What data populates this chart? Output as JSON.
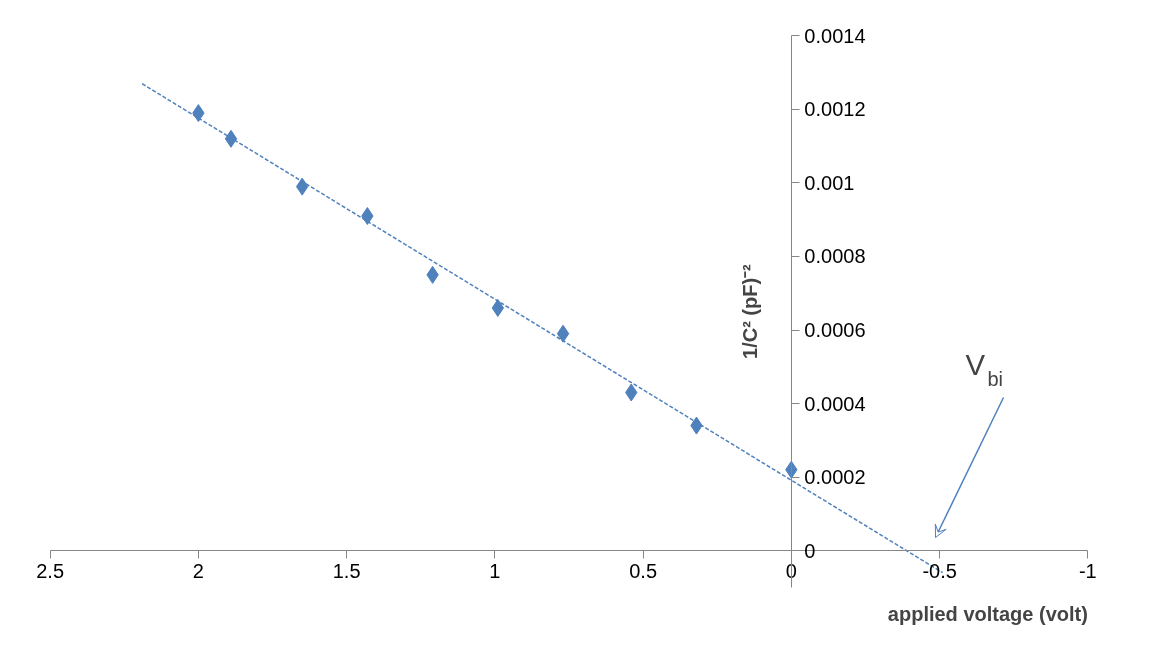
{
  "chart_data": {
    "type": "scatter",
    "xlabel": "applied voltage (volt)",
    "ylabel": "1/C² (pF)⁻²",
    "xlim": [
      2.5,
      -1
    ],
    "xticks": [
      2.5,
      2,
      1.5,
      1,
      0.5,
      0,
      -0.5,
      -1
    ],
    "ylim": [
      -0.0001,
      0.0014
    ],
    "yticks": [
      0,
      0.0002,
      0.0004,
      0.0006,
      0.0008,
      0.001,
      0.0012,
      0.0014
    ],
    "marker": "diamond",
    "series": [
      {
        "color": "#4f81bd",
        "x": [
          2,
          1.89,
          1.65,
          1.43,
          1.21,
          0.99,
          0.77,
          0.54,
          0.32,
          0
        ],
        "values": [
          0.00119,
          0.00112,
          0.00099,
          0.00091,
          0.00075,
          0.00066,
          0.00059,
          0.00043,
          0.00034,
          0.00022
        ]
      },
      {
        "type": "line",
        "color": "#4f81bd",
        "marker": "none",
        "line_style": "dashed",
        "x": [
          2.19,
          -0.51
        ],
        "values": [
          0.00127,
          -6e-05
        ]
      }
    ],
    "annotations": [
      "V$_{bi}$"
    ]
  }
}
